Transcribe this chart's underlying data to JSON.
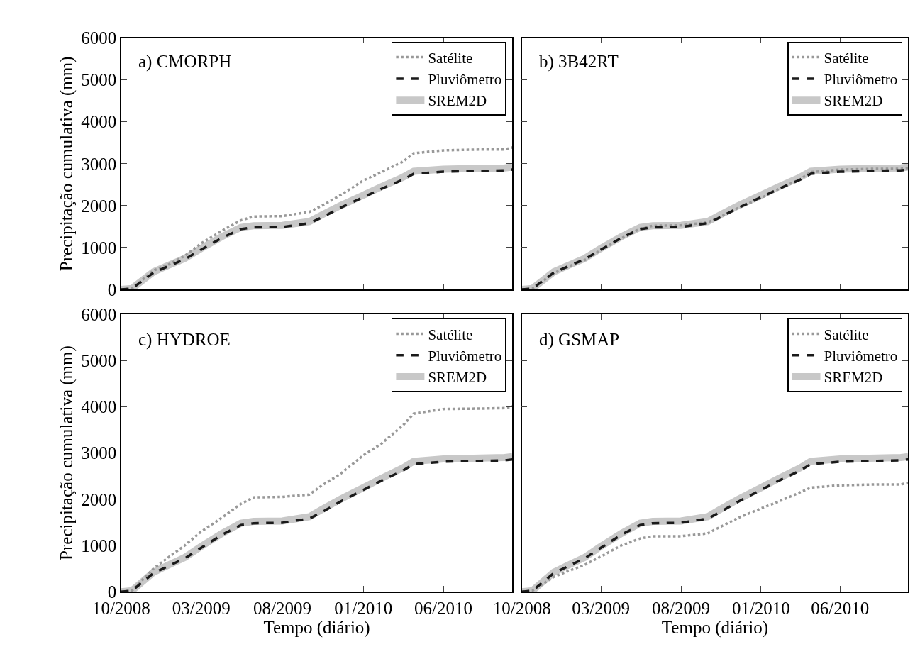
{
  "chart_data": [
    {
      "type": "line",
      "title": "a) CMORPH",
      "ylabel": "Precipitação cumulativa (mm)",
      "tick_labels": "y",
      "legend": "top right",
      "x": [
        "2008-10-01",
        "2008-10-21",
        "2008-12-01",
        "2008-12-30",
        "2009-01-29",
        "2009-03-01",
        "2009-04-09",
        "2009-05-15",
        "2009-06-08",
        "2009-08-01",
        "2009-09-21",
        "2009-10-15",
        "2009-11-19",
        "2010-01-01",
        "2010-02-04",
        "2010-03-17",
        "2010-04-06",
        "2010-06-01",
        "2010-08-11",
        "2010-09-25",
        "2010-10-09"
      ],
      "xlim": [
        "2008-10-01",
        "2010-10-09"
      ],
      "xticks": [
        {
          "value": "2008-10-01",
          "label": null
        },
        {
          "value": "2009-03-01",
          "label": null
        },
        {
          "value": "2009-08-01",
          "label": null
        },
        {
          "value": "2010-01-01",
          "label": null
        },
        {
          "value": "2010-06-01",
          "label": null
        }
      ],
      "ylim": [
        0,
        6000
      ],
      "yticks": [
        0,
        1000,
        2000,
        3000,
        4000,
        5000,
        6000
      ],
      "series": [
        {
          "name": "Satélite",
          "color": "#999999",
          "line_style": "dotted",
          "values": [
            0,
            20,
            450,
            600,
            800,
            1100,
            1400,
            1650,
            1740,
            1750,
            1850,
            2000,
            2250,
            2600,
            2800,
            3050,
            3250,
            3320,
            3340,
            3340,
            3390
          ]
        },
        {
          "name": "Pluviômetro",
          "color": "#1a1a1a",
          "line_style": "dashed",
          "values": [
            0,
            20,
            400,
            560,
            720,
            950,
            1230,
            1440,
            1480,
            1490,
            1580,
            1720,
            1950,
            2200,
            2400,
            2620,
            2760,
            2810,
            2830,
            2840,
            2860
          ]
        },
        {
          "name": "SREM2D",
          "color": "#c8c8c8",
          "line_style": "solid",
          "values": [
            0,
            20,
            420,
            580,
            740,
            980,
            1260,
            1480,
            1520,
            1530,
            1620,
            1780,
            2000,
            2250,
            2450,
            2680,
            2820,
            2870,
            2890,
            2900,
            2920
          ]
        }
      ]
    },
    {
      "type": "line",
      "title": "b) 3B42RT",
      "tick_labels": false,
      "legend": "top right",
      "x": [
        "2008-10-01",
        "2008-10-21",
        "2008-12-01",
        "2008-12-30",
        "2009-01-29",
        "2009-03-01",
        "2009-04-09",
        "2009-05-15",
        "2009-06-08",
        "2009-08-01",
        "2009-09-21",
        "2009-10-15",
        "2009-11-19",
        "2010-01-01",
        "2010-02-04",
        "2010-03-17",
        "2010-04-06",
        "2010-06-01",
        "2010-08-11",
        "2010-09-25",
        "2010-10-09"
      ],
      "xlim": [
        "2008-10-01",
        "2010-10-09"
      ],
      "xticks": [
        {
          "value": "2008-10-01",
          "label": null
        },
        {
          "value": "2009-03-01",
          "label": null
        },
        {
          "value": "2009-08-01",
          "label": null
        },
        {
          "value": "2010-01-01",
          "label": null
        },
        {
          "value": "2010-06-01",
          "label": null
        }
      ],
      "ylim": [
        0,
        6000
      ],
      "yticks": [
        0,
        1000,
        2000,
        3000,
        4000,
        5000,
        6000
      ],
      "series": [
        {
          "name": "Satélite",
          "color": "#999999",
          "line_style": "dotted",
          "values": [
            0,
            20,
            390,
            550,
            700,
            940,
            1220,
            1450,
            1520,
            1530,
            1600,
            1730,
            1950,
            2180,
            2400,
            2630,
            2800,
            2860,
            2880,
            2880,
            2900
          ]
        },
        {
          "name": "Pluviômetro",
          "color": "#1a1a1a",
          "line_style": "dashed",
          "values": [
            0,
            20,
            400,
            560,
            720,
            950,
            1230,
            1440,
            1480,
            1490,
            1580,
            1720,
            1950,
            2200,
            2400,
            2620,
            2760,
            2810,
            2830,
            2840,
            2860
          ]
        },
        {
          "name": "SREM2D",
          "color": "#c8c8c8",
          "line_style": "solid",
          "values": [
            0,
            20,
            420,
            580,
            740,
            980,
            1260,
            1480,
            1520,
            1530,
            1620,
            1780,
            2000,
            2250,
            2450,
            2680,
            2820,
            2870,
            2890,
            2900,
            2920
          ]
        }
      ]
    },
    {
      "type": "line",
      "title": "c) HYDROE",
      "ylabel": "Precipitação cumulativa (mm)",
      "xlabel": "Tempo (diário)",
      "legend": "top right",
      "x": [
        "2008-10-01",
        "2008-10-21",
        "2008-12-01",
        "2008-12-30",
        "2009-01-29",
        "2009-03-01",
        "2009-04-09",
        "2009-05-15",
        "2009-06-08",
        "2009-08-01",
        "2009-09-21",
        "2009-10-15",
        "2009-11-19",
        "2010-01-01",
        "2010-02-04",
        "2010-03-17",
        "2010-04-06",
        "2010-06-01",
        "2010-08-11",
        "2010-09-25",
        "2010-10-09"
      ],
      "xlim": [
        "2008-10-01",
        "2010-10-09"
      ],
      "xticks": [
        {
          "value": "2008-10-01",
          "label": "10/2008"
        },
        {
          "value": "2009-03-01",
          "label": "03/2009"
        },
        {
          "value": "2009-08-01",
          "label": "08/2009"
        },
        {
          "value": "2010-01-01",
          "label": "01/2010"
        },
        {
          "value": "2010-06-01",
          "label": "06/2010"
        }
      ],
      "ylim": [
        0,
        6000
      ],
      "yticks": [
        0,
        1000,
        2000,
        3000,
        4000,
        5000,
        6000
      ],
      "series": [
        {
          "name": "Satélite",
          "color": "#999999",
          "line_style": "dotted",
          "values": [
            0,
            20,
            500,
            750,
            1000,
            1300,
            1600,
            1900,
            2040,
            2050,
            2100,
            2300,
            2550,
            2950,
            3200,
            3600,
            3850,
            3950,
            3960,
            3970,
            4010
          ]
        },
        {
          "name": "Pluviômetro",
          "color": "#1a1a1a",
          "line_style": "dashed",
          "values": [
            0,
            20,
            400,
            560,
            720,
            950,
            1230,
            1440,
            1480,
            1490,
            1580,
            1720,
            1950,
            2200,
            2400,
            2620,
            2760,
            2810,
            2830,
            2840,
            2860
          ]
        },
        {
          "name": "SREM2D",
          "color": "#c8c8c8",
          "line_style": "solid",
          "values": [
            0,
            20,
            420,
            580,
            740,
            980,
            1260,
            1480,
            1520,
            1530,
            1620,
            1780,
            2000,
            2250,
            2450,
            2680,
            2820,
            2870,
            2890,
            2900,
            2920
          ]
        }
      ]
    },
    {
      "type": "line",
      "title": "d) GSMAP",
      "xlabel": "Tempo (diário)",
      "tick_labels": "x",
      "legend": "top right",
      "x": [
        "2008-10-01",
        "2008-10-21",
        "2008-12-01",
        "2008-12-30",
        "2009-01-29",
        "2009-03-01",
        "2009-04-09",
        "2009-05-15",
        "2009-06-08",
        "2009-08-01",
        "2009-09-21",
        "2009-10-15",
        "2009-11-19",
        "2010-01-01",
        "2010-02-04",
        "2010-03-17",
        "2010-04-06",
        "2010-06-01",
        "2010-08-11",
        "2010-09-25",
        "2010-10-09"
      ],
      "xlim": [
        "2008-10-01",
        "2010-10-09"
      ],
      "xticks": [
        {
          "value": "2008-10-01",
          "label": "10/2008"
        },
        {
          "value": "2009-03-01",
          "label": "03/2009"
        },
        {
          "value": "2009-08-01",
          "label": "08/2009"
        },
        {
          "value": "2010-01-01",
          "label": "01/2010"
        },
        {
          "value": "2010-06-01",
          "label": "06/2010"
        }
      ],
      "ylim": [
        0,
        6000
      ],
      "yticks": [
        0,
        1000,
        2000,
        3000,
        4000,
        5000,
        6000
      ],
      "series": [
        {
          "name": "Satélite",
          "color": "#999999",
          "line_style": "dotted",
          "values": [
            0,
            20,
            320,
            450,
            580,
            760,
            1000,
            1150,
            1200,
            1200,
            1260,
            1400,
            1600,
            1800,
            1950,
            2150,
            2250,
            2300,
            2320,
            2320,
            2350
          ]
        },
        {
          "name": "Pluviômetro",
          "color": "#1a1a1a",
          "line_style": "dashed",
          "values": [
            0,
            20,
            400,
            560,
            720,
            950,
            1230,
            1440,
            1480,
            1490,
            1580,
            1720,
            1950,
            2200,
            2400,
            2620,
            2760,
            2810,
            2830,
            2840,
            2860
          ]
        },
        {
          "name": "SREM2D",
          "color": "#c8c8c8",
          "line_style": "solid",
          "values": [
            0,
            20,
            420,
            580,
            740,
            980,
            1260,
            1480,
            1520,
            1530,
            1620,
            1780,
            2000,
            2250,
            2450,
            2680,
            2820,
            2870,
            2890,
            2900,
            2920
          ]
        }
      ]
    }
  ]
}
